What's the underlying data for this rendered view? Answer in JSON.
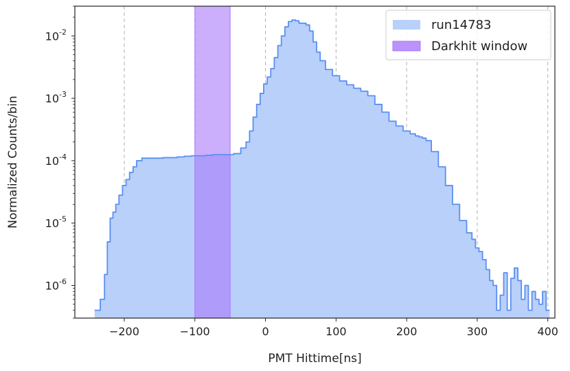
{
  "chart_data": {
    "type": "area",
    "title": "",
    "xlabel": "PMT Hittime[ns]",
    "ylabel": "Normalized Counts/bin",
    "xlim": [
      -270,
      410
    ],
    "ylim": [
      3e-07,
      0.03
    ],
    "yscale": "log",
    "grid": "x-dashed",
    "legend_position": "top-right",
    "x_ticks": [
      -200,
      -100,
      0,
      100,
      200,
      300,
      400
    ],
    "x_tick_labels": [
      "−200",
      "−100",
      "0",
      "100",
      "200",
      "300",
      "400"
    ],
    "y_ticks": [
      1e-06,
      1e-05,
      0.0001,
      0.001,
      0.01
    ],
    "y_tick_labels": [
      {
        "base": "10",
        "exp": "-6"
      },
      {
        "base": "10",
        "exp": "-5"
      },
      {
        "base": "10",
        "exp": "-4"
      },
      {
        "base": "10",
        "exp": "-3"
      },
      {
        "base": "10",
        "exp": "-2"
      }
    ],
    "series": [
      {
        "name": "run14783",
        "style": "filled-histogram-with-outline",
        "fill_color": "#b8d0fa",
        "line_color": "#5b8ff0",
        "x": [
          -238,
          -230,
          -226,
          -222,
          -218,
          -214,
          -210,
          -205,
          -200,
          -195,
          -190,
          -185,
          -180,
          -170,
          -160,
          -150,
          -140,
          -130,
          -120,
          -110,
          -100,
          -90,
          -80,
          -70,
          -60,
          -50,
          -40,
          -30,
          -25,
          -20,
          -15,
          -10,
          -5,
          0,
          5,
          10,
          15,
          20,
          25,
          30,
          35,
          40,
          45,
          50,
          55,
          60,
          65,
          70,
          75,
          80,
          90,
          100,
          110,
          120,
          130,
          140,
          150,
          160,
          170,
          180,
          190,
          200,
          210,
          215,
          220,
          225,
          230,
          240,
          250,
          260,
          270,
          280,
          290,
          295,
          300,
          305,
          310,
          315,
          320,
          325,
          330,
          335,
          340,
          345,
          350,
          355,
          360,
          365,
          370,
          375,
          380,
          385,
          390,
          395,
          400
        ],
        "y": [
          4e-07,
          6e-07,
          1.5e-06,
          5e-06,
          1.2e-05,
          1.5e-05,
          2e-05,
          2.8e-05,
          4e-05,
          5e-05,
          6.5e-05,
          8e-05,
          0.0001,
          0.00011,
          0.00011,
          0.00011,
          0.000112,
          0.000112,
          0.000115,
          0.000118,
          0.00012,
          0.00012,
          0.000122,
          0.000125,
          0.000125,
          0.000125,
          0.00013,
          0.00016,
          0.0002,
          0.0003,
          0.0005,
          0.0008,
          0.0012,
          0.0017,
          0.0022,
          0.003,
          0.0045,
          0.007,
          0.01,
          0.014,
          0.017,
          0.018,
          0.0175,
          0.016,
          0.016,
          0.015,
          0.012,
          0.008,
          0.0055,
          0.004,
          0.0029,
          0.0023,
          0.0019,
          0.00165,
          0.00145,
          0.0013,
          0.0011,
          0.0008,
          0.0006,
          0.00043,
          0.00036,
          0.0003,
          0.00027,
          0.00025,
          0.00024,
          0.00023,
          0.00021,
          0.00014,
          8e-05,
          4e-05,
          2e-05,
          1.1e-05,
          7e-06,
          5.5e-06,
          4e-06,
          3.5e-06,
          2.6e-06,
          1.8e-06,
          1.2e-06,
          1e-06,
          4e-07,
          7e-07,
          1.6e-06,
          4e-07,
          1.3e-06,
          1.9e-06,
          1.2e-06,
          6e-07,
          1e-06,
          4e-07,
          8e-07,
          6e-07,
          5e-07,
          8e-07,
          4e-07
        ]
      }
    ],
    "bands": [
      {
        "name": "Darkhit window",
        "x_start": -100,
        "x_end": -50,
        "color": "#a978fa"
      }
    ]
  }
}
